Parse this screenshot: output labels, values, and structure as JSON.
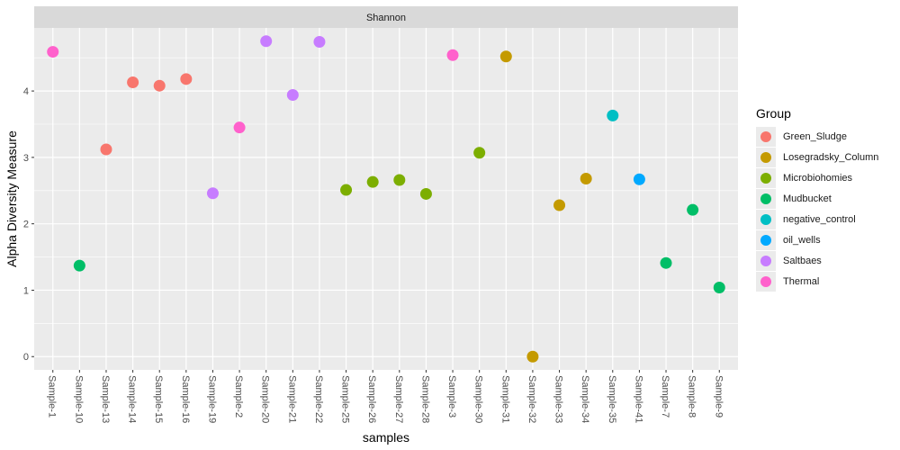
{
  "chart_data": {
    "type": "scatter",
    "facet_title": "Shannon",
    "xlabel": "samples",
    "ylabel": "Alpha Diversity Measure",
    "ylim": [
      -0.2,
      4.95
    ],
    "yticks": [
      0,
      1,
      2,
      3,
      4
    ],
    "grid": true,
    "legend_position": "right",
    "legend_title": "Group",
    "categories": [
      "Sample-1",
      "Sample-10",
      "Sample-13",
      "Sample-14",
      "Sample-15",
      "Sample-16",
      "Sample-19",
      "Sample-2",
      "Sample-20",
      "Sample-21",
      "Sample-22",
      "Sample-25",
      "Sample-26",
      "Sample-27",
      "Sample-28",
      "Sample-3",
      "Sample-30",
      "Sample-31",
      "Sample-32",
      "Sample-33",
      "Sample-34",
      "Sample-35",
      "Sample-41",
      "Sample-7",
      "Sample-8",
      "Sample-9"
    ],
    "groups": [
      {
        "name": "Green_Sludge",
        "color": "#F8766D"
      },
      {
        "name": "Losegradsky_Column",
        "color": "#C49A00"
      },
      {
        "name": "Microbiohomies",
        "color": "#7CAE00"
      },
      {
        "name": "Mudbucket",
        "color": "#00BE67"
      },
      {
        "name": "negative_control",
        "color": "#00BFC4"
      },
      {
        "name": "oil_wells",
        "color": "#00A9FF"
      },
      {
        "name": "Saltbaes",
        "color": "#C77CFF"
      },
      {
        "name": "Thermal",
        "color": "#FF61CC"
      }
    ],
    "points": [
      {
        "x": "Sample-1",
        "y": 4.59,
        "group": "Thermal"
      },
      {
        "x": "Sample-10",
        "y": 1.37,
        "group": "Mudbucket"
      },
      {
        "x": "Sample-13",
        "y": 3.12,
        "group": "Green_Sludge"
      },
      {
        "x": "Sample-14",
        "y": 4.13,
        "group": "Green_Sludge"
      },
      {
        "x": "Sample-15",
        "y": 4.08,
        "group": "Green_Sludge"
      },
      {
        "x": "Sample-16",
        "y": 4.18,
        "group": "Green_Sludge"
      },
      {
        "x": "Sample-19",
        "y": 2.46,
        "group": "Saltbaes"
      },
      {
        "x": "Sample-2",
        "y": 3.45,
        "group": "Thermal"
      },
      {
        "x": "Sample-20",
        "y": 4.75,
        "group": "Saltbaes"
      },
      {
        "x": "Sample-21",
        "y": 3.94,
        "group": "Saltbaes"
      },
      {
        "x": "Sample-22",
        "y": 4.74,
        "group": "Saltbaes"
      },
      {
        "x": "Sample-25",
        "y": 2.51,
        "group": "Microbiohomies"
      },
      {
        "x": "Sample-26",
        "y": 2.63,
        "group": "Microbiohomies"
      },
      {
        "x": "Sample-27",
        "y": 2.66,
        "group": "Microbiohomies"
      },
      {
        "x": "Sample-28",
        "y": 2.45,
        "group": "Microbiohomies"
      },
      {
        "x": "Sample-3",
        "y": 4.54,
        "group": "Thermal"
      },
      {
        "x": "Sample-30",
        "y": 3.07,
        "group": "Microbiohomies"
      },
      {
        "x": "Sample-31",
        "y": 4.52,
        "group": "Losegradsky_Column"
      },
      {
        "x": "Sample-32",
        "y": 0.0,
        "group": "Losegradsky_Column"
      },
      {
        "x": "Sample-33",
        "y": 2.28,
        "group": "Losegradsky_Column"
      },
      {
        "x": "Sample-34",
        "y": 2.68,
        "group": "Losegradsky_Column"
      },
      {
        "x": "Sample-35",
        "y": 3.63,
        "group": "negative_control"
      },
      {
        "x": "Sample-41",
        "y": 2.67,
        "group": "oil_wells"
      },
      {
        "x": "Sample-7",
        "y": 1.41,
        "group": "Mudbucket"
      },
      {
        "x": "Sample-8",
        "y": 2.21,
        "group": "Mudbucket"
      },
      {
        "x": "Sample-9",
        "y": 1.04,
        "group": "Mudbucket"
      }
    ]
  }
}
